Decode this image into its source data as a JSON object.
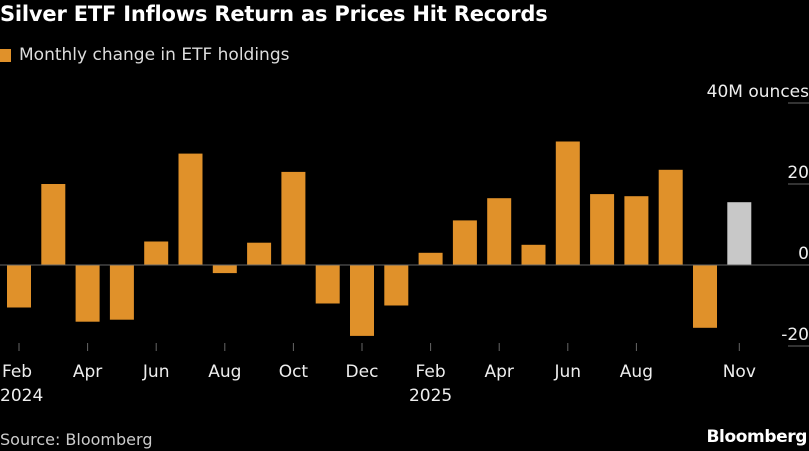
{
  "header": {
    "title": "Silver ETF Inflows Return as Prices Hit Records",
    "legend_label": "Monthly change in ETF holdings"
  },
  "footer": {
    "source": "Source: Bloomberg",
    "brand": "Bloomberg"
  },
  "colors": {
    "bar": "#e0912a",
    "bar_highlight": "#c8c8c8",
    "background": "#000000",
    "gridline": "#666666"
  },
  "chart_data": {
    "type": "bar",
    "title": "Silver ETF Inflows Return as Prices Hit Records",
    "legend": [
      "Monthly change in ETF holdings"
    ],
    "legend_position": "top-left",
    "y_unit_label": "40M ounces",
    "ylim": [
      -25,
      45
    ],
    "y_ticks": [
      40,
      20,
      0,
      -20
    ],
    "y_tick_labels": [
      "",
      "20",
      "0",
      "-20"
    ],
    "grid": false,
    "categories": [
      "2024-02",
      "2024-03",
      "2024-04",
      "2024-05",
      "2024-06",
      "2024-07",
      "2024-08",
      "2024-09",
      "2024-10",
      "2024-11",
      "2024-12",
      "2025-01",
      "2025-02",
      "2025-03",
      "2025-04",
      "2025-05",
      "2025-06",
      "2025-07",
      "2025-08",
      "2025-09",
      "2025-10",
      "2025-11"
    ],
    "x_tick_labels": [
      {
        "index": 0,
        "month": "Feb",
        "year": "2024"
      },
      {
        "index": 2,
        "month": "Apr",
        "year": ""
      },
      {
        "index": 4,
        "month": "Jun",
        "year": ""
      },
      {
        "index": 6,
        "month": "Aug",
        "year": ""
      },
      {
        "index": 8,
        "month": "Oct",
        "year": ""
      },
      {
        "index": 10,
        "month": "Dec",
        "year": ""
      },
      {
        "index": 12,
        "month": "Feb",
        "year": "2025"
      },
      {
        "index": 14,
        "month": "Apr",
        "year": ""
      },
      {
        "index": 16,
        "month": "Jun",
        "year": ""
      },
      {
        "index": 18,
        "month": "Aug",
        "year": ""
      },
      {
        "index": 21,
        "month": "Nov",
        "year": ""
      }
    ],
    "series": [
      {
        "name": "Monthly change in ETF holdings",
        "values": [
          -10.5,
          20.0,
          -14.0,
          -13.5,
          5.8,
          27.5,
          -2.0,
          5.5,
          23.0,
          -9.5,
          -17.5,
          -10.0,
          3.0,
          11.0,
          16.5,
          5.0,
          30.5,
          17.5,
          17.0,
          23.5,
          -15.5,
          15.5
        ],
        "highlight_index": 21
      }
    ]
  }
}
